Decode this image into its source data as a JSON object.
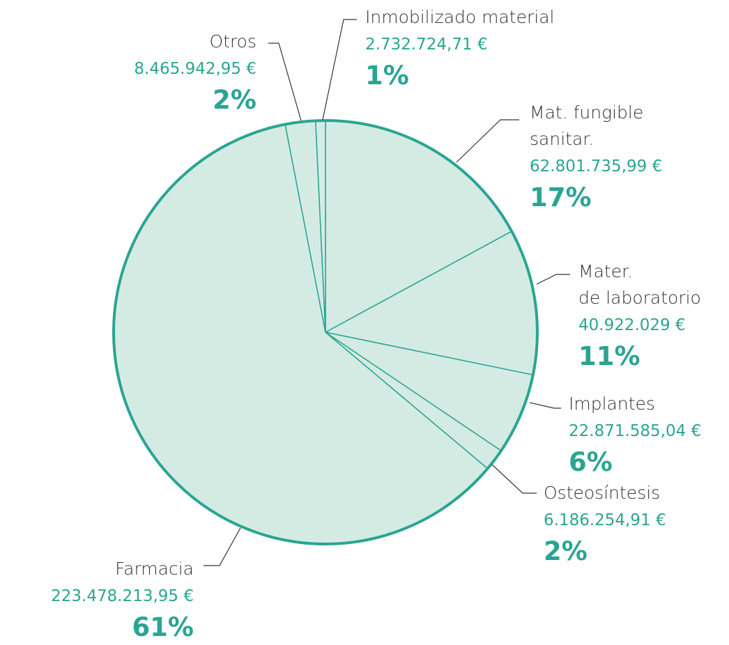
{
  "chart_data": {
    "type": "pie",
    "categories": [
      "Mat. fungible\nsanitar.",
      "Mater.\nde laboratorio",
      "Implantes",
      "Osteosíntesis",
      "Farmacia",
      "Otros",
      "Inmobilizado material"
    ],
    "values": [
      62801735.99,
      40922029,
      22871585.04,
      6186254.91,
      223478213.95,
      8465942.95,
      2732724.71
    ],
    "value_labels": [
      "62.801.735,99 €",
      "40.922.029 €",
      "22.871.585,04 €",
      "6.186.254,91 €",
      "223.478.213,95 €",
      "8.465.942,95 €",
      "2.732.724,71 €"
    ],
    "percent_labels": [
      "17%",
      "11%",
      "6%",
      "2%",
      "61%",
      "2%",
      "1%"
    ],
    "color": "#d4ebe4",
    "edge_color": "#2aa592"
  }
}
